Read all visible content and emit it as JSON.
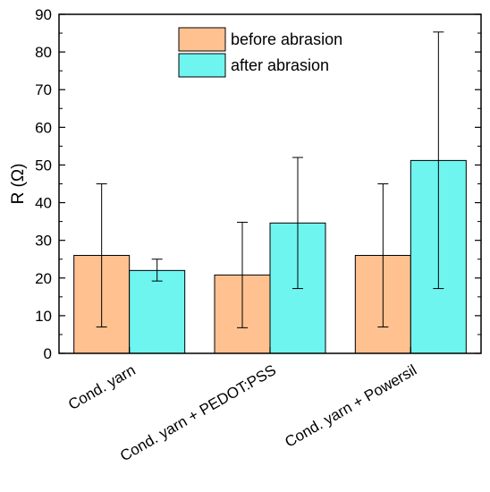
{
  "chart_data": {
    "type": "bar",
    "categories": [
      "Cond. yarn",
      "Cond. yarn + PEDOT:PSS",
      "Cond. yarn + Powersil"
    ],
    "series": [
      {
        "name": "before abrasion",
        "color": "#FFC18F",
        "values": [
          26,
          20.8,
          26
        ],
        "error_low": [
          7,
          6.8,
          7
        ],
        "error_high": [
          45,
          34.8,
          45
        ]
      },
      {
        "name": "after abrasion",
        "color": "#6FF5F0",
        "values": [
          22,
          34.6,
          51.2
        ],
        "error_low": [
          19.2,
          17.2,
          17.2
        ],
        "error_high": [
          25,
          52,
          85.3
        ]
      }
    ],
    "ylabel": "R (Ω)",
    "xlabel": "",
    "ylim": [
      0,
      90
    ],
    "yticks": [
      0,
      10,
      20,
      30,
      40,
      50,
      60,
      70,
      80,
      90
    ],
    "grid": false,
    "legend_position": "top-center"
  }
}
